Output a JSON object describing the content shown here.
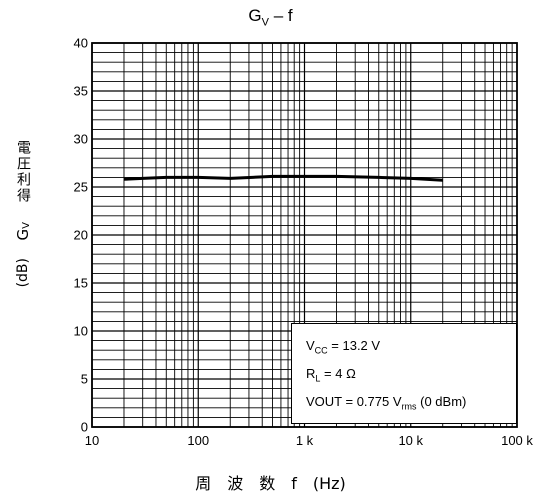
{
  "title": {
    "main": "G",
    "sub": "V",
    "rest": " – f"
  },
  "ylabel": {
    "jp": "電圧利得",
    "sym": "G",
    "sym_sub": "V",
    "unit": "(dB)"
  },
  "xlabel": "周　波　数　f　(Hz)",
  "conditions": {
    "vcc": {
      "pre": "V",
      "sub": "CC",
      "post": " = 13.2 V"
    },
    "rl": {
      "pre": "R",
      "sub": "L",
      "post": " = 4 Ω"
    },
    "vout": {
      "pre": "VOUT = 0.775 V",
      "sub": "rms",
      "post": " (0 dBm)"
    }
  },
  "chart_data": {
    "type": "line",
    "title": "GV – f",
    "xlabel": "周 波 数 f (Hz)",
    "ylabel": "電圧利得 GV (dB)",
    "x_scale": "log",
    "xlim": [
      10,
      100000
    ],
    "ylim": [
      0,
      40
    ],
    "x_ticks": [
      10,
      100,
      1000,
      10000,
      100000
    ],
    "x_tick_labels": [
      "10",
      "100",
      "1 k",
      "10 k",
      "100 k"
    ],
    "y_ticks": [
      0,
      5,
      10,
      15,
      20,
      25,
      30,
      35,
      40
    ],
    "y_tick_labels": [
      "0",
      "5",
      "10",
      "15",
      "20",
      "25",
      "30",
      "35",
      "40"
    ],
    "grid": true,
    "series": [
      {
        "x": [
          20,
          30,
          50,
          100,
          200,
          500,
          1000,
          2000,
          5000,
          10000,
          20000
        ],
        "y": [
          25.8,
          25.9,
          26.0,
          26.0,
          25.9,
          26.1,
          26.1,
          26.1,
          26.0,
          25.9,
          25.7
        ],
        "color": "#000000"
      }
    ]
  }
}
